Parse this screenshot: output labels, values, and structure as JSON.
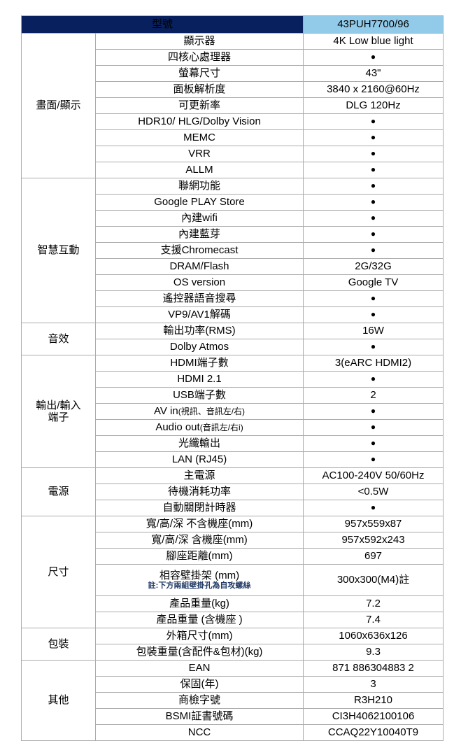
{
  "colors": {
    "header_bg": "#08215E",
    "header_text": "#FFFFFF",
    "model_bg": "#92CBE9",
    "model_text": "#0D1F3C",
    "border": "#ABABAB",
    "note_text": "#1F3864",
    "body_text": "#000000"
  },
  "table": {
    "header": {
      "model_label": "型號",
      "model_value": "43PUH7700/96"
    },
    "bullet_glyph": "●",
    "sections": [
      {
        "group": "畫面/顯示",
        "rows": [
          {
            "name": "顯示器",
            "value": "4K Low blue light"
          },
          {
            "name": "四核心處理器",
            "value": "●"
          },
          {
            "name": "螢幕尺寸",
            "value": "43\""
          },
          {
            "name": "面板解析度",
            "value": "3840 x 2160@60Hz"
          },
          {
            "name": "可更新率",
            "value": "DLG 120Hz"
          },
          {
            "name": "HDR10/ HLG/Dolby Vision",
            "value": "●"
          },
          {
            "name": "MEMC",
            "value": "●"
          },
          {
            "name": "VRR",
            "value": "●"
          },
          {
            "name": "ALLM",
            "value": "●"
          }
        ]
      },
      {
        "group": "智慧互動",
        "rows": [
          {
            "name": "聯網功能",
            "value": "●"
          },
          {
            "name": "Google PLAY Store",
            "value": "●"
          },
          {
            "name": "內建wifi",
            "value": "●"
          },
          {
            "name": "內建藍芽",
            "value": "●"
          },
          {
            "name": "支援Chromecast",
            "value": "●"
          },
          {
            "name": "DRAM/Flash",
            "value": "2G/32G"
          },
          {
            "name": "OS version",
            "value": "Google TV"
          },
          {
            "name": "遙控器語音搜尋",
            "value": "●"
          },
          {
            "name": "VP9/AV1解碼",
            "value": "●"
          }
        ]
      },
      {
        "group": "音效",
        "rows": [
          {
            "name": "輸出功率(RMS)",
            "value": "16W"
          },
          {
            "name": "Dolby Atmos",
            "value": "●"
          }
        ]
      },
      {
        "group": "輸出/輸入\n端子",
        "rows": [
          {
            "name": "HDMI端子數",
            "value": "3(eARC HDMI2)"
          },
          {
            "name": "HDMI 2.1",
            "value": "●"
          },
          {
            "name": "USB端子數",
            "value": "2"
          },
          {
            "name": "AV in",
            "suffix": "(視訊、音訊左/右)",
            "value": "●"
          },
          {
            "name": "Audio out",
            "suffix": "(音訊左/右i)",
            "value": "●"
          },
          {
            "name": "光纖輸出",
            "value": "●"
          },
          {
            "name": "LAN (RJ45)",
            "value": "●"
          }
        ]
      },
      {
        "group": "電源",
        "rows": [
          {
            "name": "主電源",
            "value": "AC100-240V 50/60Hz"
          },
          {
            "name": "待機消耗功率",
            "value": "<0.5W"
          },
          {
            "name": "自動關閉計時器",
            "value": "●"
          }
        ]
      },
      {
        "group": "尺寸",
        "rows": [
          {
            "name": "寬/高/深 不含機座(mm)",
            "value": "957x559x87"
          },
          {
            "name": "寬/高/深 含機座(mm)",
            "value": "957x592x243"
          },
          {
            "name": "腳座距離(mm)",
            "value": "697"
          },
          {
            "name": "相容壁掛架 (mm)",
            "note": "註:下方兩組壁掛孔為自攻螺絲",
            "value": "300x300(M4)註",
            "tall": true
          },
          {
            "name": "產品重量(kg)",
            "value": "7.2"
          },
          {
            "name": "產品重量 (含機座 )",
            "value": "7.4"
          }
        ]
      },
      {
        "group": "包裝",
        "rows": [
          {
            "name": "外箱尺寸(mm)",
            "value": "1060x636x126"
          },
          {
            "name": "包裝重量(含配件&包材)(kg)",
            "value": "9.3"
          }
        ]
      },
      {
        "group": "其他",
        "rows": [
          {
            "name": "EAN",
            "value": "871 886304883 2"
          },
          {
            "name": "保固(年)",
            "value": "3"
          },
          {
            "name": "商檢字號",
            "value": "R3H210"
          },
          {
            "name": "BSMI証書號碼",
            "value": "CI3H4062100106"
          },
          {
            "name": "NCC",
            "value": "CCAQ22Y10040T9"
          }
        ]
      }
    ]
  }
}
